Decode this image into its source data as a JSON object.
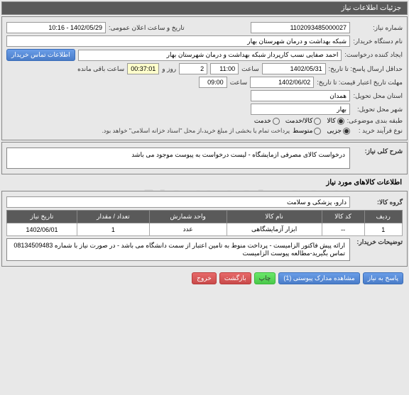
{
  "header": {
    "title": "جزئیات اطلاعات نیاز"
  },
  "form": {
    "need_no_label": "شماره نیاز:",
    "need_no": "1102093485000027",
    "announce_label": "تاریخ و ساعت اعلان عمومی:",
    "announce_value": "1402/05/29 - 10:16",
    "buyer_label": "نام دستگاه خریدار:",
    "buyer": "شبکه بهداشت و درمان شهرستان بهار",
    "creator_label": "ایجاد کننده درخواست:",
    "creator": "احمد صفایی نسب کارپرداز شبکه بهداشت و درمان شهرستان بهار",
    "contact_btn": "اطلاعات تماس خریدار",
    "deadline_label": "حداقل ارسال پاسخ: تا تاریخ:",
    "deadline_date": "1402/05/31",
    "deadline_time_label": "ساعت",
    "deadline_time": "11:00",
    "days_label": "روز و",
    "days": "2",
    "countdown": "00:37:01",
    "remain_label": "ساعت باقی مانده",
    "validity_label": "مهلت تاریخ اعتبار قیمت: تا تاریخ:",
    "validity_date": "1402/06/02",
    "validity_time": "09:00",
    "province_label": "استان محل تحویل:",
    "province": "همدان",
    "city_label": "شهر محل تحویل:",
    "city": "بهار",
    "category_label": "طبقه بندی موضوعی:",
    "kala_label": "کالا",
    "service_label": "کالا/خدمت",
    "service_extra": "خدمت",
    "purchase_type_label": "نوع فرآیند خرید :",
    "opt_partial": "جزیی",
    "opt_mid": "متوسط",
    "payment_note": "پرداخت تمام یا بخشی از مبلغ خرید،از محل \"اسناد خزانه اسلامی\" خواهد بود."
  },
  "summary": {
    "label": "شرح کلی نیاز:",
    "text": "درخواست کالای مصرفی ازمایشگاه - لیست درخواست به پیوست موجود می باشد"
  },
  "goods": {
    "header": "اطلاعات کالاهای مورد نیاز",
    "group_label": "گروه کالا:",
    "group": "دارو، پزشکی و سلامت"
  },
  "table": {
    "headers": {
      "row": "ردیف",
      "code": "کد کالا",
      "name": "نام کالا",
      "unit": "واحد شمارش",
      "qty": "تعداد / مقدار",
      "date": "تاریخ نیاز"
    },
    "rows": [
      {
        "row": "1",
        "code": "--",
        "name": "ابزار آزمایشگاهی",
        "unit": "عدد",
        "qty": "1",
        "date": "1402/06/01"
      }
    ]
  },
  "buyer_notes": {
    "label": "توضیحات خریدار:",
    "text": "ارائه پیش فاکتور الزامیست - پرداخت منوط به تامین اعتبار از سمت دانشگاه می باشد - در صورت نیاز با شماره 08134509483 تماس بگیرید-مطالعه پیوست الزامیست"
  },
  "footer": {
    "respond": "پاسخ به نیاز",
    "attachments": "مشاهده مدارک پیوستی (1)",
    "print": "چاپ",
    "back": "بازگشت",
    "exit": "خروج"
  }
}
